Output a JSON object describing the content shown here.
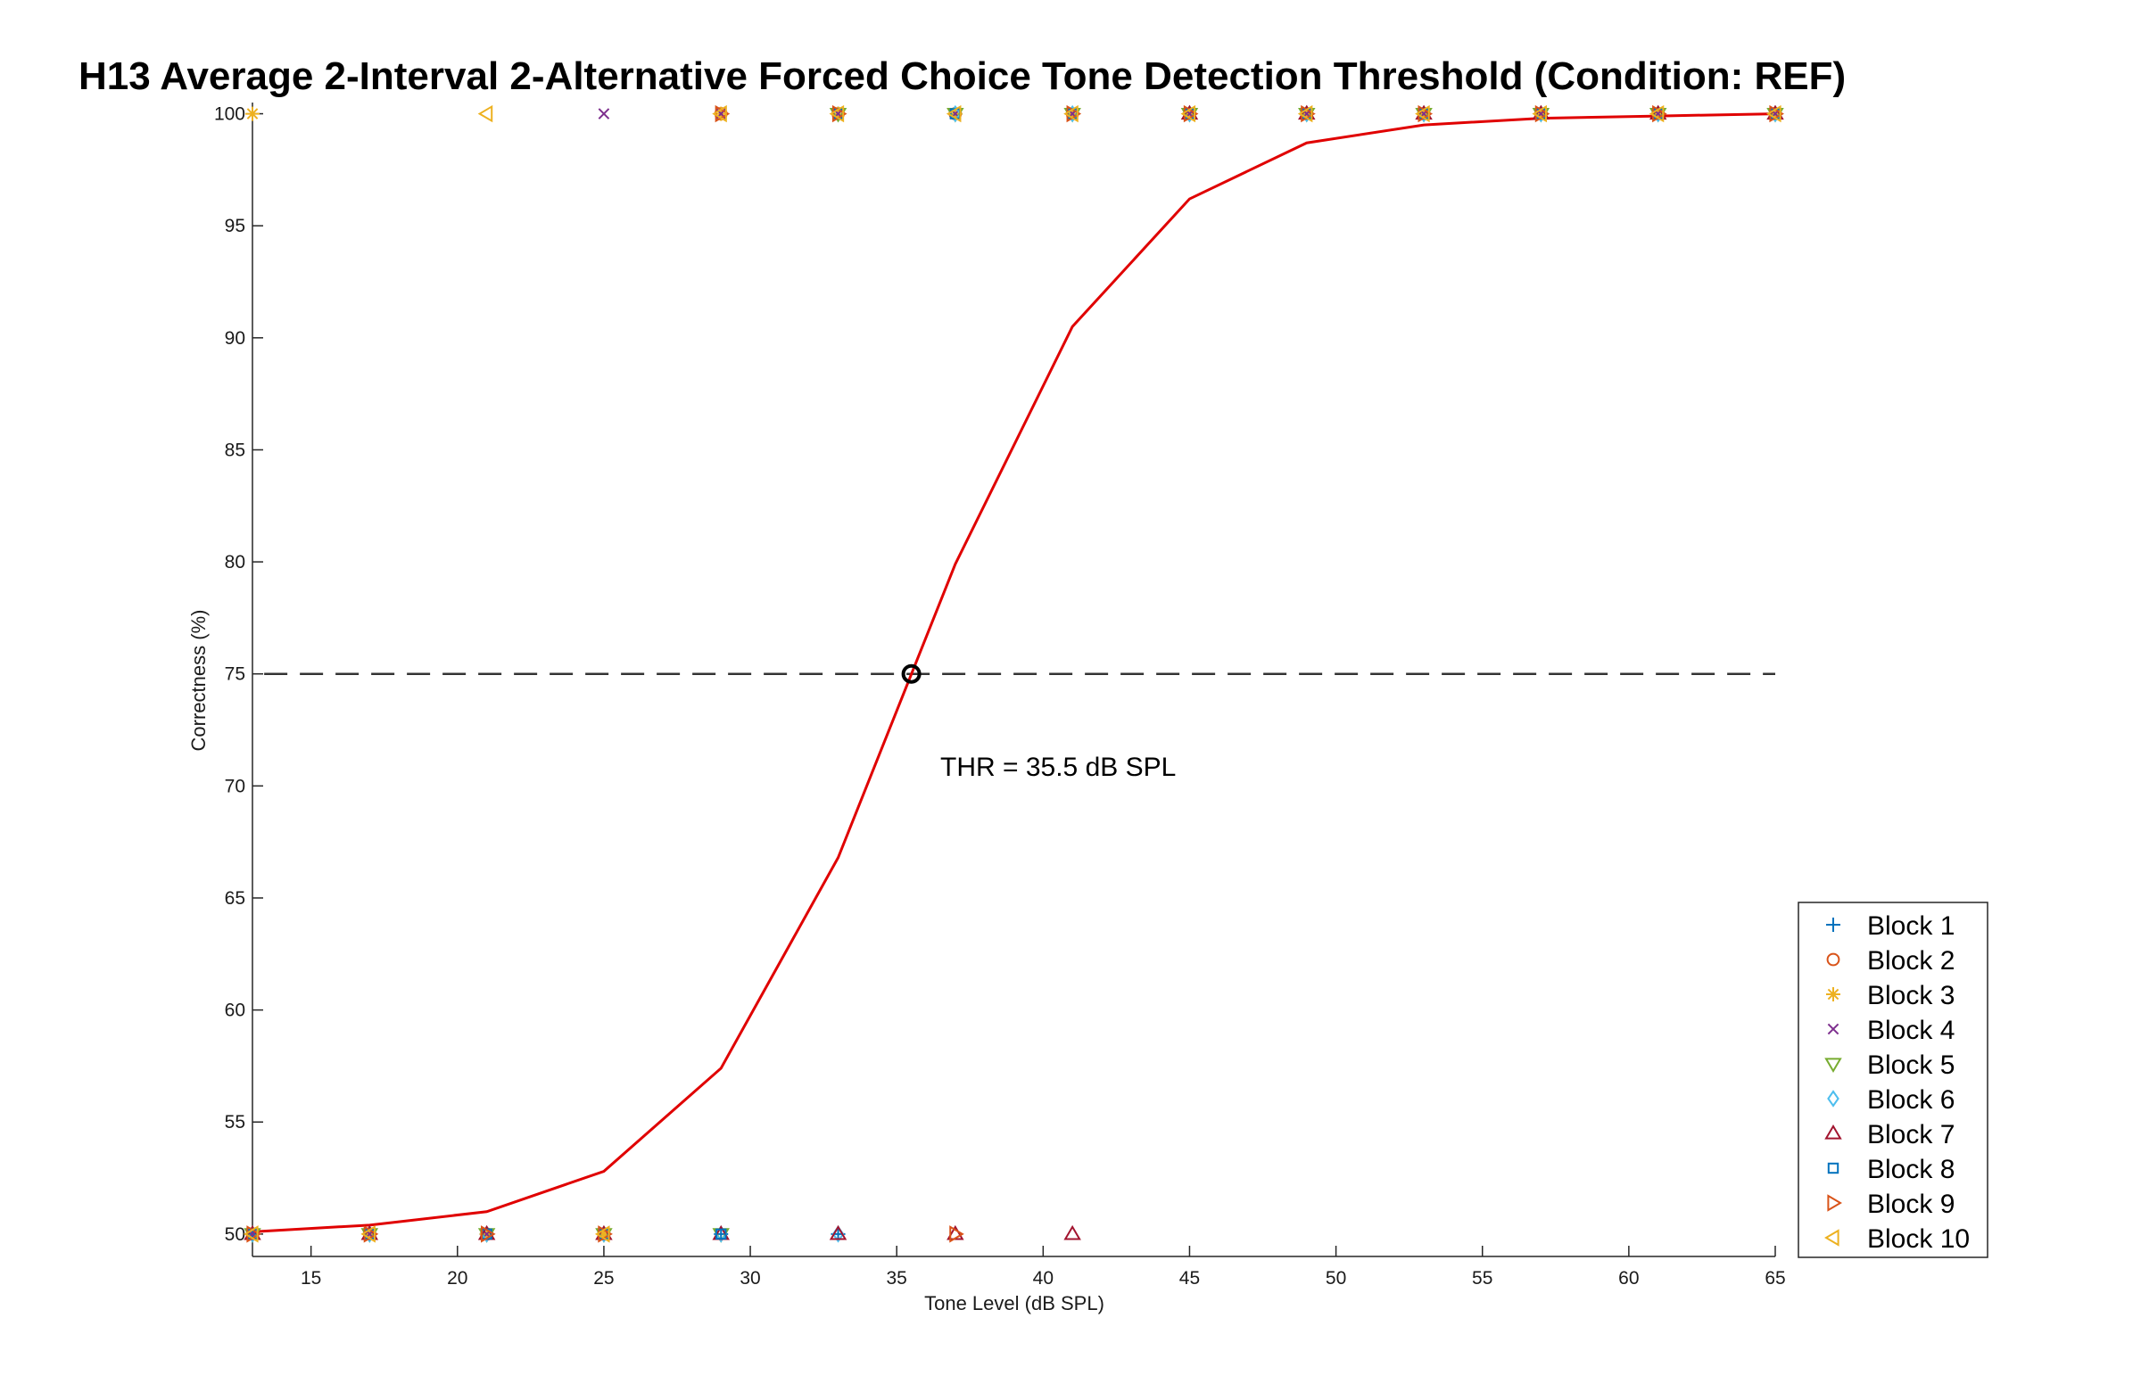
{
  "chart_data": {
    "type": "line",
    "title": "H13 Average 2-Interval 2-Alternative Forced Choice Tone Detection Threshold (Condition: REF)",
    "xlabel": "Tone Level (dB SPL)",
    "ylabel": "Correctness (%)",
    "xlim": [
      13,
      65
    ],
    "ylim": [
      49,
      100.5
    ],
    "xticks": [
      15,
      20,
      25,
      30,
      35,
      40,
      45,
      50,
      55,
      60,
      65
    ],
    "yticks": [
      50,
      55,
      60,
      65,
      70,
      75,
      80,
      85,
      90,
      95,
      100
    ],
    "grid": false,
    "legend_position": "bottom-right",
    "fit": {
      "name": "",
      "color": "#e00000",
      "x": [
        13,
        17,
        21,
        25,
        29,
        33,
        37,
        41,
        45,
        49,
        53,
        57,
        61,
        65
      ],
      "y": [
        50.1,
        50.4,
        51.0,
        52.8,
        57.4,
        66.8,
        79.9,
        90.5,
        96.2,
        98.7,
        99.5,
        99.8,
        99.9,
        100.0
      ]
    },
    "reference_line": {
      "y": 75,
      "style": "dashed",
      "color": "#333333"
    },
    "threshold": {
      "x": 35.5,
      "y": 75,
      "label": "THR = 35.5 dB SPL"
    },
    "series": [
      {
        "name": "Block 1",
        "marker": "plus",
        "color": "#0072bd",
        "points": [
          [
            13,
            50
          ],
          [
            17,
            50
          ],
          [
            21,
            50
          ],
          [
            25,
            50
          ],
          [
            29,
            50
          ],
          [
            33,
            50
          ],
          [
            33,
            100
          ],
          [
            37,
            100
          ],
          [
            41,
            100
          ],
          [
            45,
            100
          ],
          [
            49,
            100
          ],
          [
            53,
            100
          ],
          [
            57,
            100
          ],
          [
            61,
            100
          ],
          [
            65,
            100
          ]
        ]
      },
      {
        "name": "Block 2",
        "marker": "circle",
        "color": "#d95319",
        "points": [
          [
            13,
            50
          ],
          [
            17,
            50
          ],
          [
            21,
            50
          ],
          [
            25,
            50
          ],
          [
            29,
            100
          ],
          [
            33,
            100
          ],
          [
            37,
            100
          ],
          [
            41,
            100
          ],
          [
            45,
            100
          ],
          [
            49,
            100
          ],
          [
            53,
            100
          ],
          [
            57,
            100
          ],
          [
            61,
            100
          ],
          [
            65,
            100
          ]
        ]
      },
      {
        "name": "Block 3",
        "marker": "asterisk",
        "color": "#edb120",
        "points": [
          [
            13,
            100
          ],
          [
            17,
            50
          ],
          [
            21,
            50
          ],
          [
            25,
            50
          ],
          [
            29,
            100
          ],
          [
            33,
            100
          ],
          [
            37,
            100
          ],
          [
            41,
            100
          ],
          [
            45,
            100
          ],
          [
            49,
            100
          ],
          [
            53,
            100
          ],
          [
            57,
            100
          ],
          [
            61,
            100
          ],
          [
            65,
            100
          ]
        ]
      },
      {
        "name": "Block 4",
        "marker": "x",
        "color": "#7e2f8e",
        "points": [
          [
            13,
            50
          ],
          [
            17,
            50
          ],
          [
            21,
            50
          ],
          [
            25,
            100
          ],
          [
            29,
            100
          ],
          [
            33,
            100
          ],
          [
            37,
            100
          ],
          [
            41,
            100
          ],
          [
            45,
            100
          ],
          [
            49,
            100
          ],
          [
            53,
            100
          ],
          [
            57,
            100
          ],
          [
            61,
            100
          ],
          [
            65,
            100
          ]
        ]
      },
      {
        "name": "Block 5",
        "marker": "triangle-down",
        "color": "#77ac30",
        "points": [
          [
            13,
            50
          ],
          [
            17,
            50
          ],
          [
            21,
            50
          ],
          [
            25,
            50
          ],
          [
            29,
            50
          ],
          [
            33,
            100
          ],
          [
            37,
            100
          ],
          [
            41,
            100
          ],
          [
            45,
            100
          ],
          [
            49,
            100
          ],
          [
            53,
            100
          ],
          [
            57,
            100
          ],
          [
            61,
            100
          ],
          [
            65,
            100
          ]
        ]
      },
      {
        "name": "Block 6",
        "marker": "diamond",
        "color": "#4dbeee",
        "points": [
          [
            13,
            50
          ],
          [
            17,
            50
          ],
          [
            21,
            50
          ],
          [
            25,
            50
          ],
          [
            29,
            50
          ],
          [
            33,
            50
          ],
          [
            37,
            100
          ],
          [
            41,
            100
          ],
          [
            45,
            100
          ],
          [
            49,
            100
          ],
          [
            53,
            100
          ],
          [
            57,
            100
          ],
          [
            61,
            100
          ],
          [
            65,
            100
          ]
        ]
      },
      {
        "name": "Block 7",
        "marker": "triangle-up",
        "color": "#a2142f",
        "points": [
          [
            13,
            50
          ],
          [
            17,
            50
          ],
          [
            21,
            50
          ],
          [
            25,
            50
          ],
          [
            29,
            50
          ],
          [
            33,
            50
          ],
          [
            37,
            50
          ],
          [
            41,
            50
          ],
          [
            45,
            100
          ],
          [
            49,
            100
          ],
          [
            53,
            100
          ],
          [
            57,
            100
          ],
          [
            61,
            100
          ],
          [
            65,
            100
          ]
        ]
      },
      {
        "name": "Block 8",
        "marker": "square",
        "color": "#0072bd",
        "points": [
          [
            13,
            50
          ],
          [
            17,
            50
          ],
          [
            21,
            50
          ],
          [
            25,
            50
          ],
          [
            29,
            50
          ],
          [
            33,
            100
          ],
          [
            37,
            100
          ],
          [
            41,
            100
          ],
          [
            45,
            100
          ],
          [
            49,
            100
          ],
          [
            53,
            100
          ],
          [
            57,
            100
          ],
          [
            61,
            100
          ],
          [
            65,
            100
          ]
        ]
      },
      {
        "name": "Block 9",
        "marker": "triangle-right",
        "color": "#d95319",
        "points": [
          [
            13,
            50
          ],
          [
            17,
            50
          ],
          [
            21,
            50
          ],
          [
            25,
            50
          ],
          [
            29,
            100
          ],
          [
            33,
            100
          ],
          [
            37,
            50
          ],
          [
            41,
            100
          ],
          [
            45,
            100
          ],
          [
            49,
            100
          ],
          [
            53,
            100
          ],
          [
            57,
            100
          ],
          [
            61,
            100
          ],
          [
            65,
            100
          ]
        ]
      },
      {
        "name": "Block 10",
        "marker": "triangle-left",
        "color": "#edb120",
        "points": [
          [
            13,
            50
          ],
          [
            17,
            50
          ],
          [
            21,
            100
          ],
          [
            25,
            50
          ],
          [
            29,
            100
          ],
          [
            33,
            100
          ],
          [
            37,
            100
          ],
          [
            41,
            100
          ],
          [
            45,
            100
          ],
          [
            49,
            100
          ],
          [
            53,
            100
          ],
          [
            57,
            100
          ],
          [
            61,
            100
          ],
          [
            65,
            100
          ]
        ]
      }
    ]
  }
}
